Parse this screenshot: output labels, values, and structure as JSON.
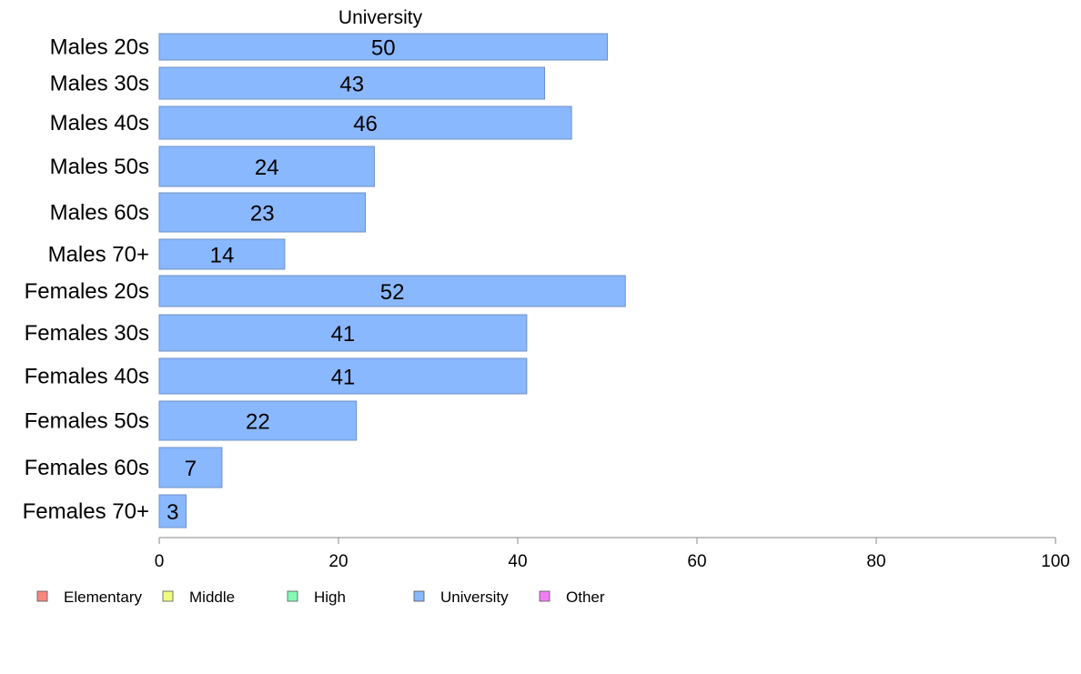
{
  "chart_data": {
    "type": "bar",
    "orientation": "horizontal",
    "title": "University",
    "categories": [
      "Males 20s",
      "Males 30s",
      "Males 40s",
      "Males 50s",
      "Males 60s",
      "Males 70+",
      "Females 20s",
      "Females 30s",
      "Females 40s",
      "Females 50s",
      "Females 60s",
      "Females 70+"
    ],
    "series": [
      {
        "name": "University",
        "color": "#8ab8fe",
        "values": [
          50,
          43,
          46,
          24,
          23,
          14,
          52,
          41,
          41,
          22,
          7,
          3
        ]
      }
    ],
    "xlim": [
      0,
      100
    ],
    "x_ticks": [
      0,
      20,
      40,
      60,
      80,
      100
    ],
    "grid": false,
    "legend": {
      "placement": "bottom-left",
      "items": [
        {
          "label": "Elementary",
          "color": "#f98780"
        },
        {
          "label": "Middle",
          "color": "#eefc82"
        },
        {
          "label": "High",
          "color": "#86f9b5"
        },
        {
          "label": "University",
          "color": "#8ab8fe"
        },
        {
          "label": "Other",
          "color": "#f27ef6"
        }
      ]
    }
  }
}
